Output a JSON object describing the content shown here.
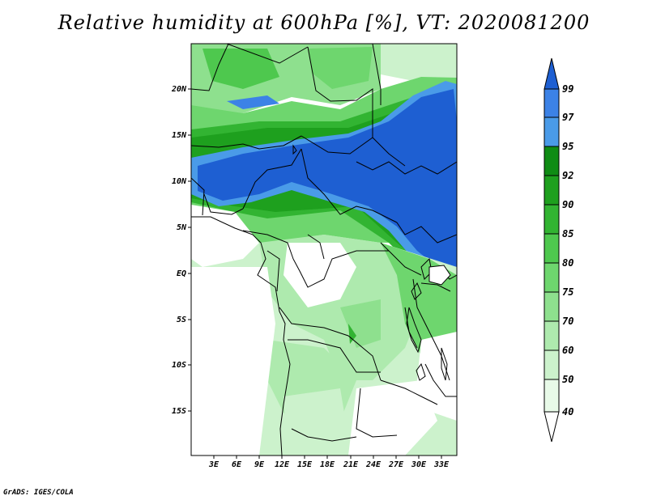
{
  "title": "Relative humidity at 600hPa [%], VT: 2020081200",
  "credit": "GrADS: IGES/COLA",
  "map": {
    "lat_labels": [
      "20N",
      "15N",
      "10N",
      "5N",
      "EQ",
      "5S",
      "10S",
      "15S"
    ],
    "lon_labels": [
      "3E",
      "6E",
      "9E",
      "12E",
      "15E",
      "18E",
      "21E",
      "24E",
      "27E",
      "30E",
      "33E"
    ]
  },
  "colorbar": {
    "levels": [
      "99",
      "97",
      "95",
      "92",
      "90",
      "85",
      "80",
      "75",
      "70",
      "60",
      "50",
      "40"
    ],
    "colors": [
      "#1e5fd2",
      "#3c82e6",
      "#4a9be8",
      "#0f8c14",
      "#1ea01e",
      "#32b432",
      "#4ec84e",
      "#6ed66e",
      "#8ee08e",
      "#aeeaae",
      "#ccf2cc",
      "#e8fae8",
      "#ffffff"
    ]
  }
}
